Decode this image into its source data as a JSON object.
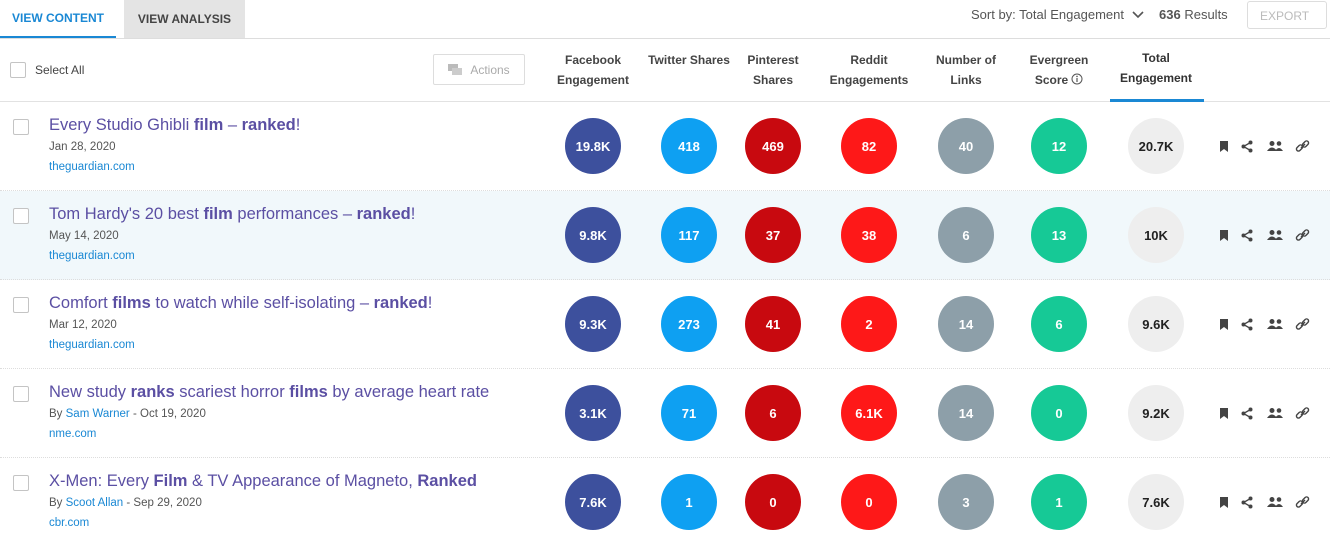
{
  "tabs": [
    "VIEW CONTENT",
    "VIEW ANALYSIS"
  ],
  "sort_label": "Sort by: Total Engagement",
  "results_count": "636",
  "results_label": "Results",
  "export_label": "EXPORT",
  "select_all": "Select All",
  "actions_label": "Actions",
  "columns": [
    {
      "label": "Facebook Engagement",
      "color": "#3d509d"
    },
    {
      "label": "Twitter Shares",
      "color": "#0ea0f2"
    },
    {
      "label": "Pinterest Shares",
      "color": "#c8090f"
    },
    {
      "label": "Reddit Engagements",
      "color": "#fe1818"
    },
    {
      "label": "Number of Links",
      "color": "#8d9fa9"
    },
    {
      "label": "Evergreen Score",
      "color": "#16c996"
    },
    {
      "label": "Total Engagement",
      "color": "#eeeeee"
    }
  ],
  "rows": [
    {
      "title": [
        "Every Studio Ghibli ",
        "film",
        " – ",
        "ranked",
        "!"
      ],
      "date": "Jan 28, 2020",
      "domain": "theguardian.com",
      "metrics": [
        "19.8K",
        "418",
        "469",
        "82",
        "40",
        "12",
        "20.7K"
      ]
    },
    {
      "title": [
        "Tom Hardy's 20 best ",
        "film",
        " performances – ",
        "ranked",
        "!"
      ],
      "date": "May 14, 2020",
      "domain": "theguardian.com",
      "metrics": [
        "9.8K",
        "117",
        "37",
        "38",
        "6",
        "13",
        "10K"
      ]
    },
    {
      "title": [
        "Comfort ",
        "films",
        " to watch while self-isolating – ",
        "ranked",
        "!"
      ],
      "date": "Mar 12, 2020",
      "domain": "theguardian.com",
      "metrics": [
        "9.3K",
        "273",
        "41",
        "2",
        "14",
        "6",
        "9.6K"
      ]
    },
    {
      "title": [
        "New study ",
        "ranks",
        " scariest horror ",
        "films",
        " by average heart rate"
      ],
      "by": "By",
      "author": "Sam Warner",
      "sep": "-",
      "date": "Oct 19, 2020",
      "domain": "nme.com",
      "metrics": [
        "3.1K",
        "71",
        "6",
        "6.1K",
        "14",
        "0",
        "9.2K"
      ]
    },
    {
      "title": [
        "X-Men: Every ",
        "Film",
        " & TV Appearance of Magneto, ",
        "Ranked"
      ],
      "by": "By",
      "author": "Scoot Allan",
      "sep": "-",
      "date": "Sep 29, 2020",
      "domain": "cbr.com",
      "metrics": [
        "7.6K",
        "1",
        "0",
        "0",
        "3",
        "1",
        "7.6K"
      ]
    }
  ]
}
